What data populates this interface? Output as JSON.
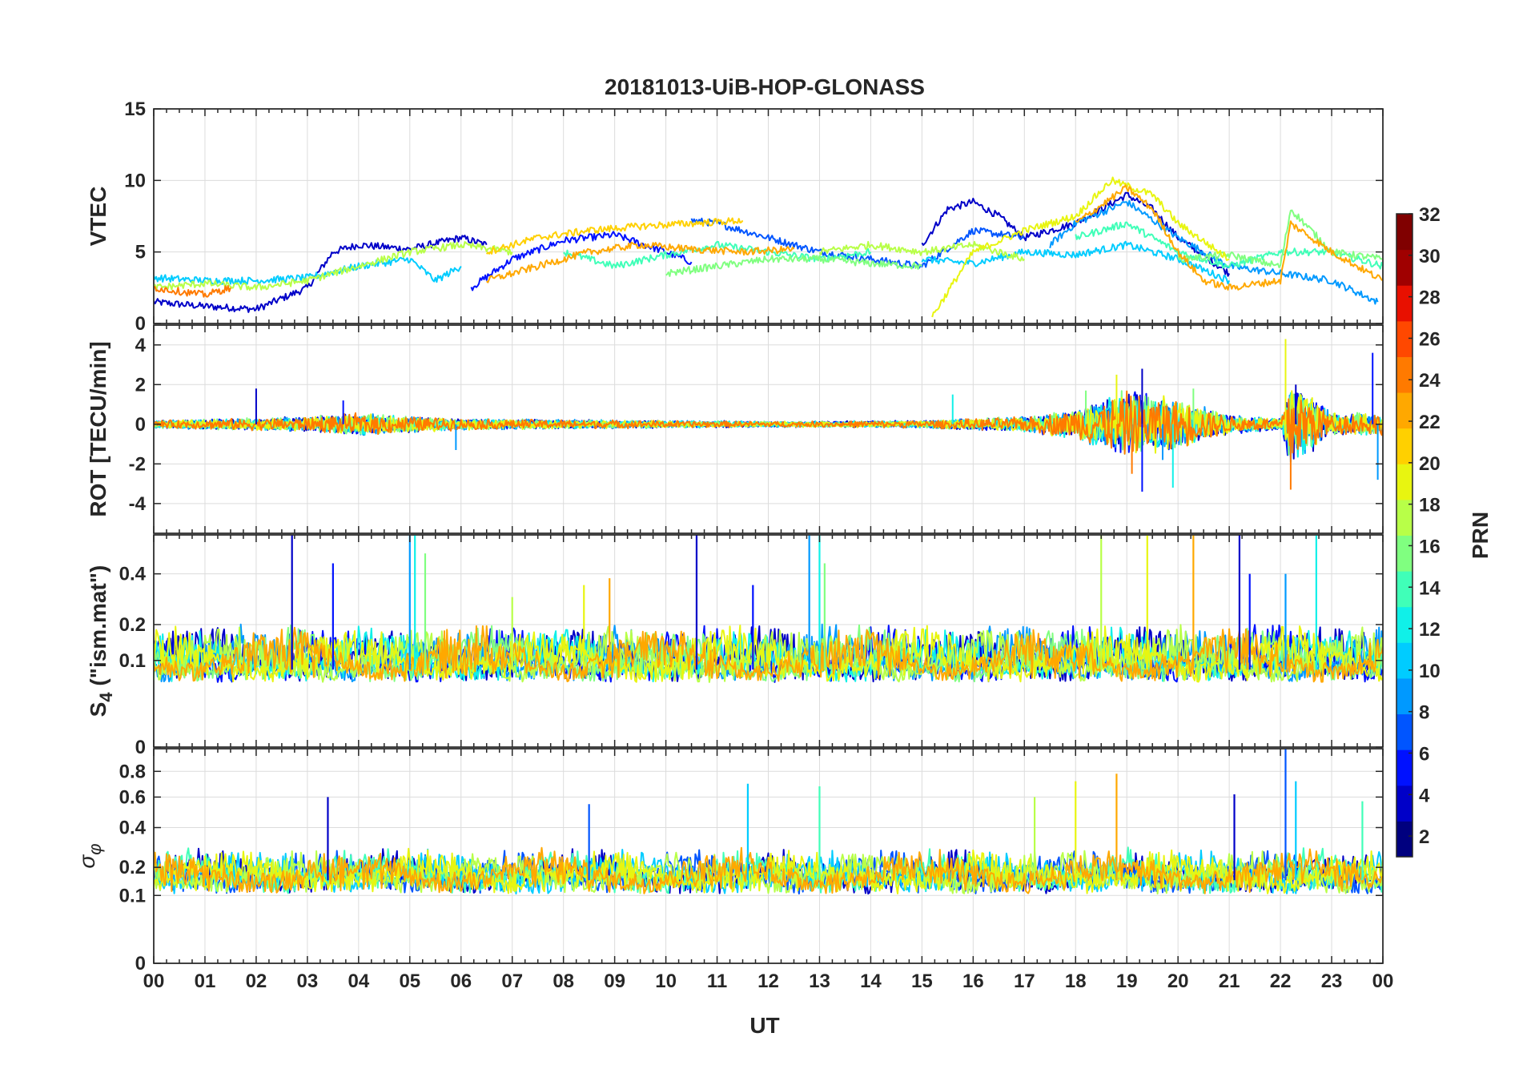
{
  "chart_data": {
    "type": "line",
    "title": "20181013-UiB-HOP-GLONASS",
    "xlabel": "UT",
    "x_range_hours": [
      0,
      24
    ],
    "x_tick_labels": [
      "00",
      "01",
      "02",
      "03",
      "04",
      "05",
      "06",
      "07",
      "08",
      "09",
      "10",
      "11",
      "12",
      "13",
      "14",
      "15",
      "16",
      "17",
      "18",
      "19",
      "20",
      "21",
      "22",
      "23",
      "00"
    ],
    "color_palette": [
      "#00007f",
      "#0000c8",
      "#0011ff",
      "#0055ff",
      "#0099ff",
      "#00ccff",
      "#10f0e8",
      "#40ffb8",
      "#80ff80",
      "#b8ff48",
      "#e8f510",
      "#ffd000",
      "#ffa800",
      "#ff7a00",
      "#ff4800",
      "#e81000",
      "#a00000",
      "#800000"
    ],
    "colorbar": {
      "label": "PRN",
      "range": [
        1,
        32
      ],
      "tick_labels": [
        "2",
        "4",
        "6",
        "8",
        "10",
        "12",
        "14",
        "16",
        "18",
        "20",
        "22",
        "24",
        "26",
        "28",
        "30",
        "32"
      ]
    },
    "panels": [
      {
        "ylabel": "VTEC",
        "ylim": [
          0,
          15
        ],
        "y_ticks": [
          0,
          5,
          10,
          15
        ],
        "y_tick_labels": [
          "0",
          "5",
          "10",
          "15"
        ],
        "series": [
          {
            "prn": 2,
            "points": [
              [
                0,
                1.5
              ],
              [
                1,
                1.2
              ],
              [
                2,
                1.0
              ],
              [
                3,
                2.5
              ],
              [
                3.5,
                5.0
              ],
              [
                4,
                5.5
              ],
              [
                5,
                5.2
              ],
              [
                6,
                6.0
              ],
              [
                6.5,
                5.5
              ]
            ]
          },
          {
            "prn": 3,
            "points": [
              [
                15,
                5.5
              ],
              [
                15.5,
                8.0
              ],
              [
                16,
                8.5
              ],
              [
                16.5,
                7.5
              ],
              [
                17,
                6.0
              ],
              [
                18,
                7.0
              ],
              [
                19,
                9.0
              ],
              [
                19.5,
                8.0
              ],
              [
                20,
                6.0
              ],
              [
                21,
                3.5
              ]
            ]
          },
          {
            "prn": 5,
            "points": [
              [
                6.2,
                2.5
              ],
              [
                7,
                4.5
              ],
              [
                8,
                5.8
              ],
              [
                9,
                6.2
              ],
              [
                10,
                5.0
              ],
              [
                10.5,
                4.3
              ]
            ]
          },
          {
            "prn": 6,
            "points": [
              [
                10.5,
                7.2
              ],
              [
                11,
                7.0
              ],
              [
                12,
                6.0
              ],
              [
                13,
                5.0
              ],
              [
                14,
                4.5
              ],
              [
                15,
                4.0
              ],
              [
                16,
                6.5
              ],
              [
                17,
                6.0
              ]
            ]
          },
          {
            "prn": 8,
            "points": [
              [
                17.5,
                5.5
              ],
              [
                18,
                7.0
              ],
              [
                19,
                8.5
              ],
              [
                20,
                6.0
              ],
              [
                21,
                4.0
              ],
              [
                22,
                3.5
              ],
              [
                23,
                3.0
              ],
              [
                23.9,
                1.5
              ]
            ]
          },
          {
            "prn": 10,
            "points": [
              [
                0,
                3.2
              ],
              [
                1,
                3.0
              ],
              [
                2,
                3.0
              ],
              [
                3,
                3.2
              ],
              [
                4,
                4.0
              ],
              [
                5,
                4.5
              ],
              [
                5.5,
                3.0
              ],
              [
                6,
                4.0
              ]
            ]
          },
          {
            "prn": 11,
            "points": [
              [
                15,
                4.5
              ],
              [
                16,
                4.2
              ],
              [
                17,
                5.0
              ],
              [
                18,
                4.8
              ],
              [
                19,
                5.5
              ],
              [
                20,
                4.5
              ],
              [
                21,
                3.0
              ]
            ]
          },
          {
            "prn": 13,
            "points": [
              [
                8,
                5.0
              ],
              [
                9,
                4.0
              ],
              [
                10,
                4.8
              ],
              [
                11,
                5.5
              ],
              [
                12,
                5.0
              ],
              [
                13,
                4.5
              ],
              [
                14,
                5.0
              ]
            ]
          },
          {
            "prn": 14,
            "points": [
              [
                18,
                6.0
              ],
              [
                19,
                7.0
              ],
              [
                20,
                5.0
              ],
              [
                21,
                4.0
              ],
              [
                22,
                5.0
              ],
              [
                23,
                5.0
              ],
              [
                24,
                4.0
              ]
            ]
          },
          {
            "prn": 15,
            "points": [
              [
                20,
                4.5
              ],
              [
                21,
                4.8
              ],
              [
                22,
                4.0
              ],
              [
                22.2,
                8.0
              ],
              [
                23,
                5.0
              ],
              [
                24,
                4.5
              ]
            ]
          },
          {
            "prn": 16,
            "points": [
              [
                10,
                3.5
              ],
              [
                11,
                4.0
              ],
              [
                12,
                4.5
              ],
              [
                13,
                4.5
              ],
              [
                14,
                4.2
              ],
              [
                15,
                4.0
              ]
            ]
          },
          {
            "prn": 17,
            "points": [
              [
                0,
                2.5
              ],
              [
                1,
                2.8
              ],
              [
                2,
                2.5
              ],
              [
                3,
                3.0
              ],
              [
                4,
                4.0
              ],
              [
                5,
                5.0
              ],
              [
                6,
                5.5
              ],
              [
                7,
                5.0
              ]
            ]
          },
          {
            "prn": 18,
            "points": [
              [
                13,
                5.0
              ],
              [
                14,
                5.5
              ],
              [
                15,
                5.0
              ],
              [
                16,
                5.5
              ],
              [
                17,
                4.5
              ]
            ]
          },
          {
            "prn": 20,
            "points": [
              [
                15.2,
                0.5
              ],
              [
                16,
                5.0
              ],
              [
                17,
                6.5
              ],
              [
                18,
                7.5
              ],
              [
                18.7,
                10.0
              ],
              [
                19.5,
                9.0
              ],
              [
                20,
                7.0
              ],
              [
                21,
                4.5
              ]
            ]
          },
          {
            "prn": 21,
            "points": [
              [
                6.5,
                5.0
              ],
              [
                7.5,
                6.0
              ],
              [
                8.5,
                6.5
              ],
              [
                9.5,
                6.8
              ],
              [
                10.5,
                7.0
              ],
              [
                11.5,
                7.2
              ]
            ]
          },
          {
            "prn": 22,
            "points": [
              [
                6.5,
                3.0
              ],
              [
                7.5,
                4.0
              ],
              [
                8.5,
                5.0
              ],
              [
                9.5,
                5.5
              ],
              [
                10.5,
                5.2
              ],
              [
                11.5,
                5.0
              ],
              [
                12.5,
                5.2
              ]
            ]
          },
          {
            "prn": 23,
            "points": [
              [
                18,
                7.0
              ],
              [
                19,
                9.5
              ],
              [
                19.5,
                8.0
              ],
              [
                20,
                5.0
              ],
              [
                20.5,
                3.0
              ],
              [
                21,
                2.5
              ],
              [
                22,
                3.0
              ],
              [
                22.2,
                7.0
              ],
              [
                23,
                5.0
              ],
              [
                24,
                3.0
              ]
            ]
          },
          {
            "prn": 24,
            "points": [
              [
                0,
                2.5
              ],
              [
                1,
                2.0
              ],
              [
                1.5,
                2.5
              ]
            ]
          }
        ]
      },
      {
        "ylabel": "ROT [TECU/min]",
        "ylim": [
          -5.5,
          5
        ],
        "y_ticks": [
          -4,
          -2,
          0,
          2,
          4
        ],
        "y_tick_labels": [
          "-4",
          "-2",
          "0",
          "2",
          "4"
        ],
        "noise_envelope": {
          "hours": [
            0,
            3,
            4,
            6,
            12,
            15,
            17,
            18,
            19,
            20,
            21,
            22,
            22.2,
            23,
            24
          ],
          "amplitude": [
            0.2,
            0.4,
            0.6,
            0.3,
            0.15,
            0.2,
            0.4,
            0.8,
            1.8,
            1.3,
            0.5,
            0.3,
            2.5,
            0.6,
            0.6
          ]
        },
        "spikes": [
          [
            2.0,
            1.8
          ],
          [
            3.7,
            1.2
          ],
          [
            5.9,
            -1.3
          ],
          [
            15.6,
            1.5
          ],
          [
            18.2,
            1.7
          ],
          [
            18.8,
            2.5
          ],
          [
            19.1,
            -2.5
          ],
          [
            19.3,
            2.8
          ],
          [
            19.3,
            -3.4
          ],
          [
            19.7,
            -1.8
          ],
          [
            19.9,
            -3.2
          ],
          [
            20.3,
            1.8
          ],
          [
            22.1,
            4.3
          ],
          [
            22.2,
            -3.3
          ],
          [
            22.3,
            2.0
          ],
          [
            23.8,
            3.6
          ],
          [
            23.9,
            -2.8
          ]
        ],
        "series_prn": [
          2,
          4,
          8,
          12,
          16,
          20,
          24
        ]
      },
      {
        "ylabel": "S4 (\"ism.mat\")",
        "ylabel_main": "S",
        "ylabel_sub": "4",
        "ylabel_rest": " (\"ism.mat\")",
        "ylim": [
          0,
          0.6
        ],
        "y_scale": "sqrt",
        "y_ticks": [
          0,
          0.1,
          0.2,
          0.4
        ],
        "y_tick_labels": [
          "0",
          "0.1",
          "0.2",
          "0.4"
        ],
        "baseline": 0.08,
        "spikes": [
          [
            2.7,
            0.6
          ],
          [
            3.5,
            0.45
          ],
          [
            5.0,
            0.6
          ],
          [
            5.1,
            0.6
          ],
          [
            5.3,
            0.5
          ],
          [
            7.0,
            0.3
          ],
          [
            8.4,
            0.35
          ],
          [
            8.9,
            0.38
          ],
          [
            10.6,
            0.6
          ],
          [
            11.7,
            0.35
          ],
          [
            12.8,
            0.6
          ],
          [
            13.0,
            0.6
          ],
          [
            13.1,
            0.45
          ],
          [
            18.5,
            0.6
          ],
          [
            19.4,
            0.6
          ],
          [
            20.3,
            0.6
          ],
          [
            21.2,
            0.6
          ],
          [
            21.4,
            0.4
          ],
          [
            22.1,
            0.4
          ],
          [
            22.7,
            0.6
          ]
        ],
        "series_prn": [
          2,
          5,
          9,
          12,
          15,
          18,
          20,
          23
        ]
      },
      {
        "ylabel": "σ φ",
        "ylabel_main": "σ",
        "ylabel_sub": "φ",
        "ylim": [
          0,
          1
        ],
        "y_scale": "sqrt",
        "y_ticks": [
          0,
          0.1,
          0.2,
          0.4,
          0.6,
          0.8
        ],
        "y_tick_labels": [
          "0",
          "0.1",
          "0.2",
          "0.4",
          "0.6",
          "0.8"
        ],
        "baseline": 0.15,
        "spikes": [
          [
            3.4,
            0.6
          ],
          [
            8.5,
            0.55
          ],
          [
            11.6,
            0.7
          ],
          [
            13.0,
            0.68
          ],
          [
            17.2,
            0.6
          ],
          [
            18.0,
            0.72
          ],
          [
            18.8,
            0.78
          ],
          [
            21.1,
            0.62
          ],
          [
            22.1,
            1.0
          ],
          [
            22.3,
            0.72
          ],
          [
            23.6,
            0.57
          ]
        ],
        "series_prn": [
          2,
          6,
          11,
          14,
          17,
          20,
          23
        ]
      }
    ]
  }
}
